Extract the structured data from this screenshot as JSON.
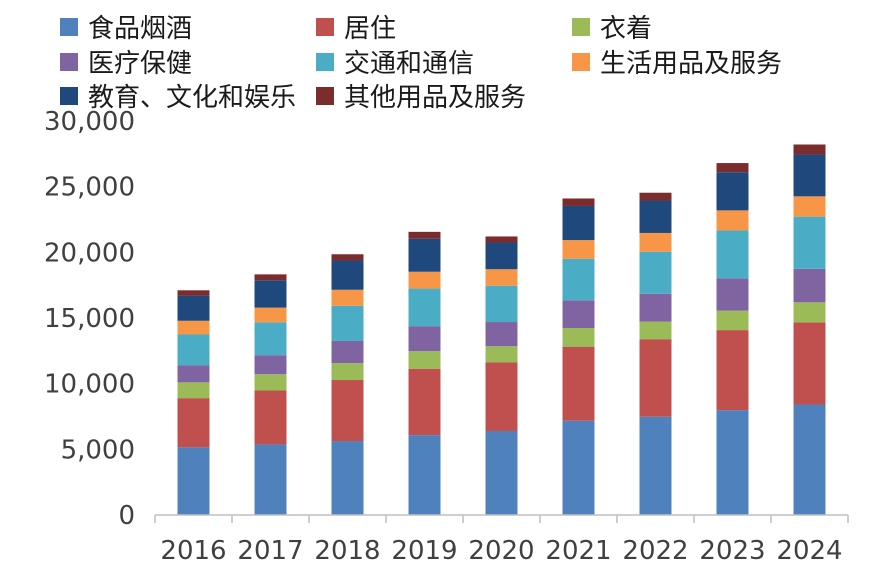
{
  "chart_data": {
    "type": "bar",
    "stacked": true,
    "categories": [
      "2016",
      "2017",
      "2018",
      "2019",
      "2020",
      "2021",
      "2022",
      "2023",
      "2024"
    ],
    "ylim": [
      0,
      30000
    ],
    "yticks": [
      0,
      5000,
      10000,
      15000,
      20000,
      25000,
      30000
    ],
    "ytick_labels": [
      "0",
      "5,000",
      "10,000",
      "15,000",
      "20,000",
      "25,000",
      "30,000"
    ],
    "grid": false,
    "legend_position": "top",
    "series": [
      {
        "name": "食品烟酒",
        "color": "#4f81bd",
        "values": [
          5151,
          5374,
          5631,
          6084,
          6397,
          7178,
          7481,
          7983,
          8411
        ]
      },
      {
        "name": "居住",
        "color": "#c0504d",
        "values": [
          3746,
          4107,
          4647,
          5055,
          5215,
          5641,
          5882,
          6095,
          6263
        ]
      },
      {
        "name": "衣着",
        "color": "#9bbb59",
        "values": [
          1203,
          1238,
          1289,
          1338,
          1238,
          1419,
          1365,
          1479,
          1521
        ]
      },
      {
        "name": "医疗保健",
        "color": "#8064a2",
        "values": [
          1307,
          1451,
          1685,
          1902,
          1843,
          2115,
          2120,
          2460,
          2547
        ]
      },
      {
        "name": "交通和通信",
        "color": "#4bacc6",
        "values": [
          2338,
          2499,
          2675,
          2862,
          2762,
          3156,
          3195,
          3652,
          3976
        ]
      },
      {
        "name": "生活用品及服务",
        "color": "#f79646",
        "values": [
          1044,
          1121,
          1223,
          1281,
          1260,
          1423,
          1432,
          1526,
          1547
        ]
      },
      {
        "name": "教育、文化和娱乐",
        "color": "#1f497d",
        "values": [
          1915,
          2086,
          2226,
          2513,
          2032,
          2599,
          2469,
          2904,
          3189
        ]
      },
      {
        "name": "其他用品及服务",
        "color": "#7b2c2c",
        "values": [
          406,
          447,
          477,
          524,
          462,
          569,
          595,
          697,
          756
        ]
      }
    ]
  }
}
